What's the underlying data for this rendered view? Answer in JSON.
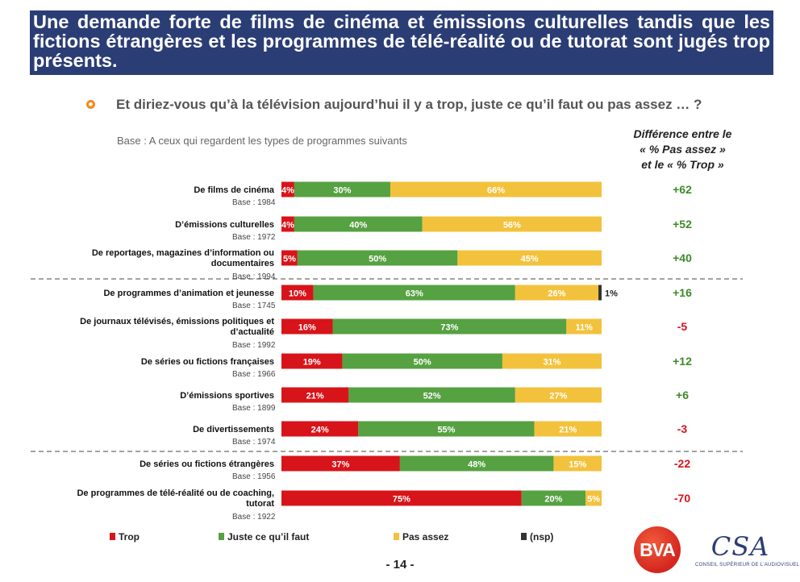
{
  "title": "Une demande forte de films de cinéma et émissions culturelles tandis que les fictions étrangères et les programmes de télé-réalité ou de tutorat sont jugés trop présents.",
  "question": "Et diriez-vous qu’à la télévision aujourd’hui il y a trop, juste ce qu’il faut ou pas assez … ?",
  "base_note": "Base : A ceux qui regardent les types de programmes suivants",
  "diff_header": [
    "Différence entre le",
    "« % Pas assez »",
    "et le « % Trop »"
  ],
  "page_number": "- 14 -",
  "logos": {
    "bva": "BVA",
    "csa": "CSA",
    "csa_sub": "CONSEIL SUPÉRIEUR DE L’AUDIOVISUEL"
  },
  "colors": {
    "trop": "#d7141a",
    "juste": "#56a141",
    "pas_assez": "#f3c23c",
    "nsp": "#333333",
    "diff_positive": "#3d8a2a",
    "diff_negative": "#d7141a",
    "title_bg": "#2b3d75"
  },
  "chart_data": {
    "type": "bar",
    "orientation": "horizontal",
    "stacked": true,
    "xlim": [
      0,
      100
    ],
    "legend_position": "bottom",
    "legend": [
      "Trop",
      "Juste ce qu’il faut",
      "Pas assez",
      "(nsp)"
    ],
    "categories": [
      {
        "label": "De films de cinéma",
        "base": "Base : 1984",
        "diff": "+62"
      },
      {
        "label": "D’émissions culturelles",
        "base": "Base : 1972",
        "diff": "+52"
      },
      {
        "label": "De reportages, magazines d’information ou documentaires",
        "base": "Base : 1994",
        "diff": "+40"
      },
      {
        "label": "De programmes d’animation et jeunesse",
        "base": "Base : 1745",
        "diff": "+16"
      },
      {
        "label": "De journaux télévisés, émissions politiques et d’actualité",
        "base": "Base : 1992",
        "diff": "-5"
      },
      {
        "label": "De séries ou fictions françaises",
        "base": "Base : 1966",
        "diff": "+12"
      },
      {
        "label": "D’émissions sportives",
        "base": "Base : 1899",
        "diff": "+6"
      },
      {
        "label": "De divertissements",
        "base": "Base : 1974",
        "diff": "-3"
      },
      {
        "label": "De séries ou fictions étrangères",
        "base": "Base : 1956",
        "diff": "-22"
      },
      {
        "label": "De programmes de télé-réalité ou de coaching, tutorat",
        "base": "Base : 1922",
        "diff": "-70"
      }
    ],
    "series": [
      {
        "name": "Trop",
        "values": [
          4,
          4,
          5,
          10,
          16,
          19,
          21,
          24,
          37,
          75
        ]
      },
      {
        "name": "Juste ce qu’il faut",
        "values": [
          30,
          40,
          50,
          63,
          73,
          50,
          52,
          55,
          48,
          20
        ]
      },
      {
        "name": "Pas assez",
        "values": [
          66,
          56,
          45,
          26,
          11,
          31,
          27,
          21,
          15,
          5
        ]
      },
      {
        "name": "(nsp)",
        "values": [
          0,
          0,
          0,
          1,
          0,
          0,
          0,
          0,
          0,
          0
        ]
      }
    ],
    "value_labels": {
      "Trop": [
        "4%",
        "4%",
        "5%",
        "10%",
        "16%",
        "19%",
        "21%",
        "24%",
        "37%",
        "75%"
      ],
      "Juste ce qu’il faut": [
        "30%",
        "40%",
        "50%",
        "63%",
        "73%",
        "50%",
        "52%",
        "55%",
        "48%",
        "20%"
      ],
      "Pas assez": [
        "66%",
        "56%",
        "45%",
        "26%",
        "11%",
        "31%",
        "27%",
        "21%",
        "15%",
        "5%"
      ],
      "(nsp)": [
        "",
        "",
        "",
        "1%",
        "",
        "",
        "",
        "",
        "",
        ""
      ]
    }
  }
}
